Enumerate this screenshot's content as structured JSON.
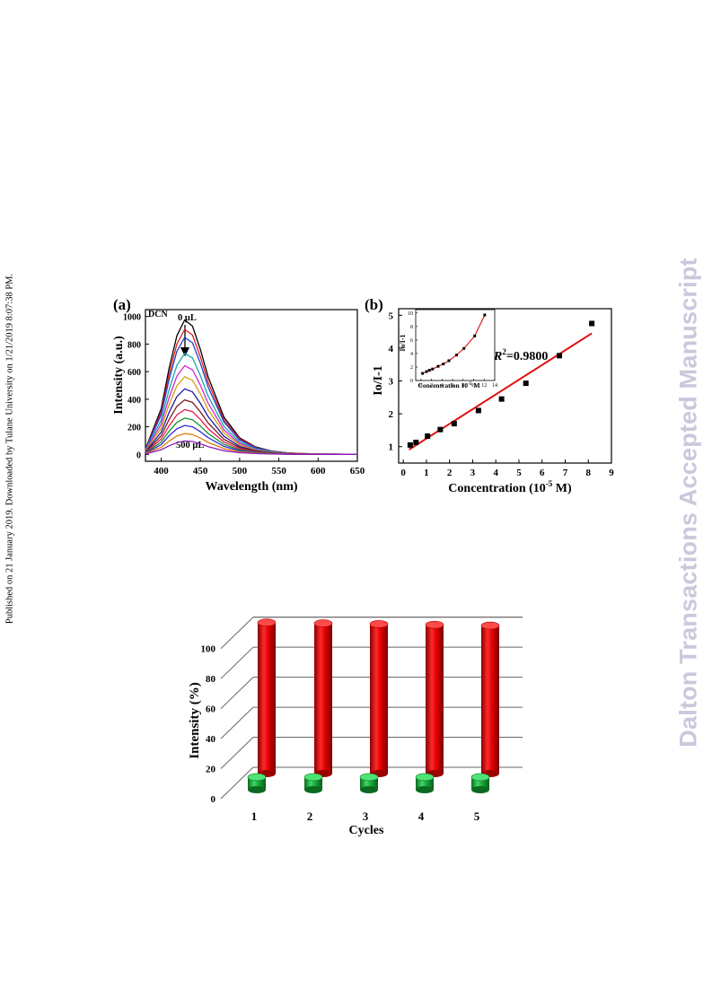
{
  "side_note": "Published on 21 January 2019. Downloaded by Tulane University on 1/21/2019 8:07:38 PM.",
  "watermark": "Dalton Transactions Accepted Manuscript",
  "chart_data": [
    {
      "id": "a",
      "panel_label": "(a)",
      "type": "line",
      "xlabel": "Wavelength (nm)",
      "ylabel": "Intensity (a.u.)",
      "xlim": [
        380,
        650
      ],
      "ylim": [
        -50,
        1050
      ],
      "xticks": [
        400,
        450,
        500,
        550,
        600,
        650
      ],
      "yticks": [
        0,
        200,
        400,
        600,
        800,
        1000
      ],
      "grid": false,
      "legend": "none",
      "peak_x": 430,
      "annotations": {
        "sample": "DCN",
        "top": "0 μL",
        "bottom": "500 μL"
      },
      "series": [
        {
          "color": "#000000",
          "values": {
            "x": [
              380,
              400,
              410,
              420,
              430,
              440,
              450,
              460,
              480,
              500,
              520,
              540,
              560,
              580,
              600,
              620,
              650
            ],
            "y": [
              40,
              330,
              620,
              860,
              975,
              930,
              760,
              560,
              270,
              120,
              55,
              25,
              12,
              6,
              3,
              2,
              0
            ]
          }
        },
        {
          "color": "#e51c1c",
          "values": {
            "x": [
              380,
              400,
              410,
              420,
              430,
              440,
              450,
              460,
              480,
              500,
              520,
              540,
              560,
              580,
              600,
              620,
              650
            ],
            "y": [
              37,
              307,
              577,
              800,
              907,
              865,
              707,
              521,
              251,
              112,
              51,
              23,
              11,
              6,
              3,
              2,
              0
            ]
          }
        },
        {
          "color": "#1f3fd4",
          "values": {
            "x": [
              380,
              400,
              410,
              420,
              430,
              440,
              450,
              460,
              480,
              500,
              520,
              540,
              560,
              580,
              600,
              620,
              650
            ],
            "y": [
              35,
              287,
              539,
              748,
              848,
              809,
              661,
              487,
              235,
              104,
              48,
              22,
              10,
              5,
              3,
              2,
              0
            ]
          }
        },
        {
          "color": "#19a7a7",
          "values": {
            "x": [
              380,
              400,
              410,
              420,
              430,
              440,
              450,
              460,
              480,
              500,
              520,
              540,
              560,
              580,
              600,
              620,
              650
            ],
            "y": [
              30,
              248,
              466,
              646,
              733,
              699,
              571,
              421,
              203,
              90,
              41,
              19,
              9,
              5,
              2,
              1,
              0
            ]
          }
        },
        {
          "color": "#d327d3",
          "values": {
            "x": [
              380,
              400,
              410,
              420,
              430,
              440,
              450,
              460,
              480,
              500,
              520,
              540,
              560,
              580,
              600,
              620,
              650
            ],
            "y": [
              26,
              219,
              409,
              568,
              643,
              613,
              501,
              369,
              178,
              79,
              36,
              16,
              8,
              4,
              2,
              1,
              0
            ]
          }
        },
        {
          "color": "#d4a10f",
          "values": {
            "x": [
              380,
              400,
              410,
              420,
              430,
              440,
              450,
              460,
              480,
              500,
              520,
              540,
              560,
              580,
              600,
              620,
              650
            ],
            "y": [
              23,
              190,
              359,
              497,
              563,
              537,
              439,
              323,
              156,
              69,
              32,
              14,
              7,
              4,
              2,
              1,
              0
            ]
          }
        },
        {
          "color": "#1a1aa0",
          "values": {
            "x": [
              380,
              400,
              410,
              420,
              430,
              440,
              450,
              460,
              480,
              500,
              520,
              540,
              560,
              580,
              600,
              620,
              650
            ],
            "y": [
              19,
              161,
              302,
              419,
              475,
              453,
              370,
              273,
              131,
              58,
              27,
              12,
              6,
              3,
              1,
              1,
              0
            ]
          }
        },
        {
          "color": "#7a1a1a",
          "values": {
            "x": [
              380,
              400,
              410,
              420,
              430,
              440,
              450,
              460,
              480,
              500,
              520,
              540,
              560,
              580,
              600,
              620,
              650
            ],
            "y": [
              16,
              134,
              251,
              349,
              395,
              377,
              308,
              227,
              109,
              49,
              22,
              10,
              5,
              2,
              1,
              1,
              0
            ]
          }
        },
        {
          "color": "#e3194d",
          "values": {
            "x": [
              380,
              400,
              410,
              420,
              430,
              440,
              450,
              460,
              480,
              500,
              520,
              540,
              560,
              580,
              600,
              620,
              650
            ],
            "y": [
              14,
              110,
              206,
              286,
              325,
              310,
              253,
              186,
              90,
              40,
              18,
              8,
              4,
              2,
              1,
              1,
              0
            ]
          }
        },
        {
          "color": "#16912a",
          "values": {
            "x": [
              380,
              400,
              410,
              420,
              430,
              440,
              450,
              460,
              480,
              500,
              520,
              540,
              560,
              580,
              600,
              620,
              650
            ],
            "y": [
              11,
              89,
              167,
              232,
              263,
              251,
              205,
              151,
              73,
              32,
              15,
              7,
              3,
              2,
              1,
              1,
              0
            ]
          }
        },
        {
          "color": "#2d2dd6",
          "values": {
            "x": [
              380,
              400,
              410,
              420,
              430,
              440,
              450,
              460,
              480,
              500,
              520,
              540,
              560,
              580,
              600,
              620,
              650
            ],
            "y": [
              9,
              71,
              134,
              185,
              210,
              200,
              164,
              121,
              58,
              26,
              12,
              5,
              3,
              1,
              1,
              0,
              0
            ]
          }
        },
        {
          "color": "#e07a10",
          "values": {
            "x": [
              380,
              400,
              410,
              420,
              430,
              440,
              450,
              460,
              480,
              500,
              520,
              540,
              560,
              580,
              600,
              620,
              650
            ],
            "y": [
              6,
              51,
              96,
              133,
              151,
              144,
              118,
              87,
              42,
              19,
              9,
              4,
              2,
              1,
              0,
              0,
              0
            ]
          }
        },
        {
          "color": "#8a1ab8",
          "values": {
            "x": [
              380,
              400,
              410,
              420,
              430,
              440,
              450,
              460,
              480,
              500,
              520,
              540,
              560,
              580,
              600,
              620,
              650
            ],
            "y": [
              4,
              33,
              62,
              85,
              97,
              93,
              76,
              56,
              27,
              12,
              6,
              3,
              1,
              1,
              0,
              0,
              0
            ]
          }
        }
      ]
    },
    {
      "id": "b",
      "panel_label": "(b)",
      "type": "scatter",
      "xlabel": "Concentration (10",
      "xlabel_sup": "-5",
      "xlabel_end": " M)",
      "ylabel": "Io/I-1",
      "xlim": [
        -0.2,
        9
      ],
      "ylim": [
        0.5,
        5.2
      ],
      "xticks": [
        0,
        1,
        2,
        3,
        4,
        5,
        6,
        7,
        8,
        9
      ],
      "yticks": [
        1,
        2,
        3,
        4,
        5
      ],
      "grid": false,
      "legend": "none",
      "r2_italic": "R",
      "r2_sup": "2",
      "r2_value": "=0.9800",
      "points": {
        "x": [
          0.3,
          0.55,
          1.05,
          1.6,
          2.2,
          3.25,
          4.25,
          5.3,
          6.75,
          8.15
        ],
        "y": [
          1.05,
          1.13,
          1.32,
          1.52,
          1.7,
          2.1,
          2.45,
          2.93,
          3.77,
          4.75
        ]
      },
      "fit": {
        "color": "#e01010",
        "x": [
          0.25,
          8.15
        ],
        "y": [
          0.91,
          4.45
        ]
      },
      "inset": {
        "type": "scatter",
        "xlabel": "Concentration 10",
        "xlabel_sup": "-5",
        "xlabel_end": " M",
        "ylabel": "Io/I-1",
        "xlim": [
          -1,
          14
        ],
        "ylim": [
          0,
          10.5
        ],
        "xticks": [
          0,
          2,
          4,
          6,
          8,
          10,
          12,
          14
        ],
        "yticks": [
          0,
          2,
          4,
          6,
          8,
          10
        ],
        "points": {
          "x": [
            0.3,
            1.05,
            1.6,
            2.2,
            3.25,
            4.25,
            5.3,
            6.75,
            8.15,
            10.2,
            12.1
          ],
          "y": [
            1.05,
            1.32,
            1.52,
            1.7,
            2.1,
            2.45,
            2.93,
            3.77,
            4.75,
            6.6,
            9.7
          ]
        },
        "curve_color": "#e01010"
      }
    },
    {
      "id": "cycles",
      "type": "bar",
      "xlabel": "Cycles",
      "ylabel": "Intensity (%)",
      "categories": [
        "1",
        "2",
        "3",
        "4",
        "5"
      ],
      "ylim": [
        0,
        110
      ],
      "yticks": [
        0,
        20,
        40,
        60,
        80,
        100
      ],
      "grid": true,
      "legend": "none",
      "series": [
        {
          "color": "#e00000",
          "values": [
            100,
            99.5,
            99,
            98.5,
            98
          ]
        },
        {
          "color": "#18a83a",
          "values": [
            6,
            6,
            6,
            6,
            6
          ]
        }
      ]
    }
  ]
}
